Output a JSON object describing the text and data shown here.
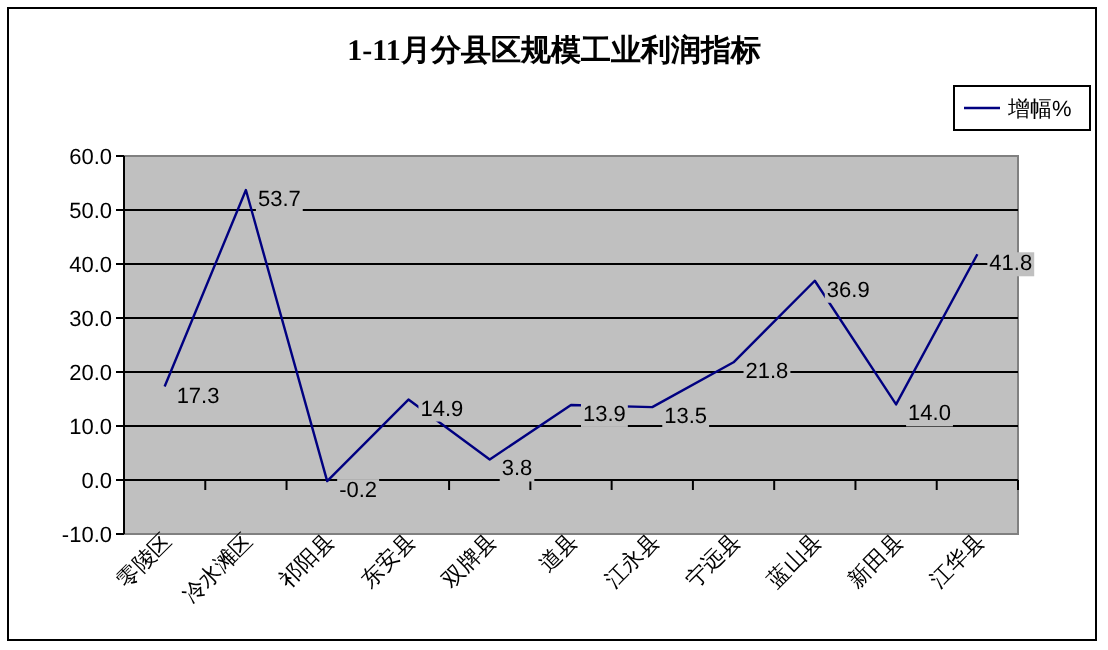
{
  "chart_data": {
    "type": "line",
    "title": "1-11月分县区规模工业利润指标",
    "categories": [
      "零陵区",
      "冷水滩区",
      "祁阳县",
      "东安县",
      "双牌县",
      "道县",
      "江永县",
      "宁远县",
      "蓝山县",
      "新田县",
      "江华县"
    ],
    "series": [
      {
        "name": "增幅%",
        "color": "#000080",
        "values": [
          17.3,
          53.7,
          -0.2,
          14.9,
          3.8,
          13.9,
          13.5,
          21.8,
          36.9,
          14.0,
          41.8
        ],
        "value_labels": [
          "17.3",
          "53.7",
          "-0.2",
          "14.9",
          "3.8",
          "13.9",
          "13.5",
          "21.8",
          "36.9",
          "14.0",
          "41.8"
        ]
      }
    ],
    "ylim": [
      -10,
      60
    ],
    "yticks": [
      {
        "value": -10,
        "label": "-10.0"
      },
      {
        "value": 0,
        "label": "0.0"
      },
      {
        "value": 10,
        "label": "10.0"
      },
      {
        "value": 20,
        "label": "20.0"
      },
      {
        "value": 30,
        "label": "30.0"
      },
      {
        "value": 40,
        "label": "40.0"
      },
      {
        "value": 50,
        "label": "50.0"
      },
      {
        "value": 60,
        "label": "60.0"
      }
    ],
    "grid": "y",
    "legend": "top right",
    "marker": "none",
    "line_style": "solid"
  }
}
